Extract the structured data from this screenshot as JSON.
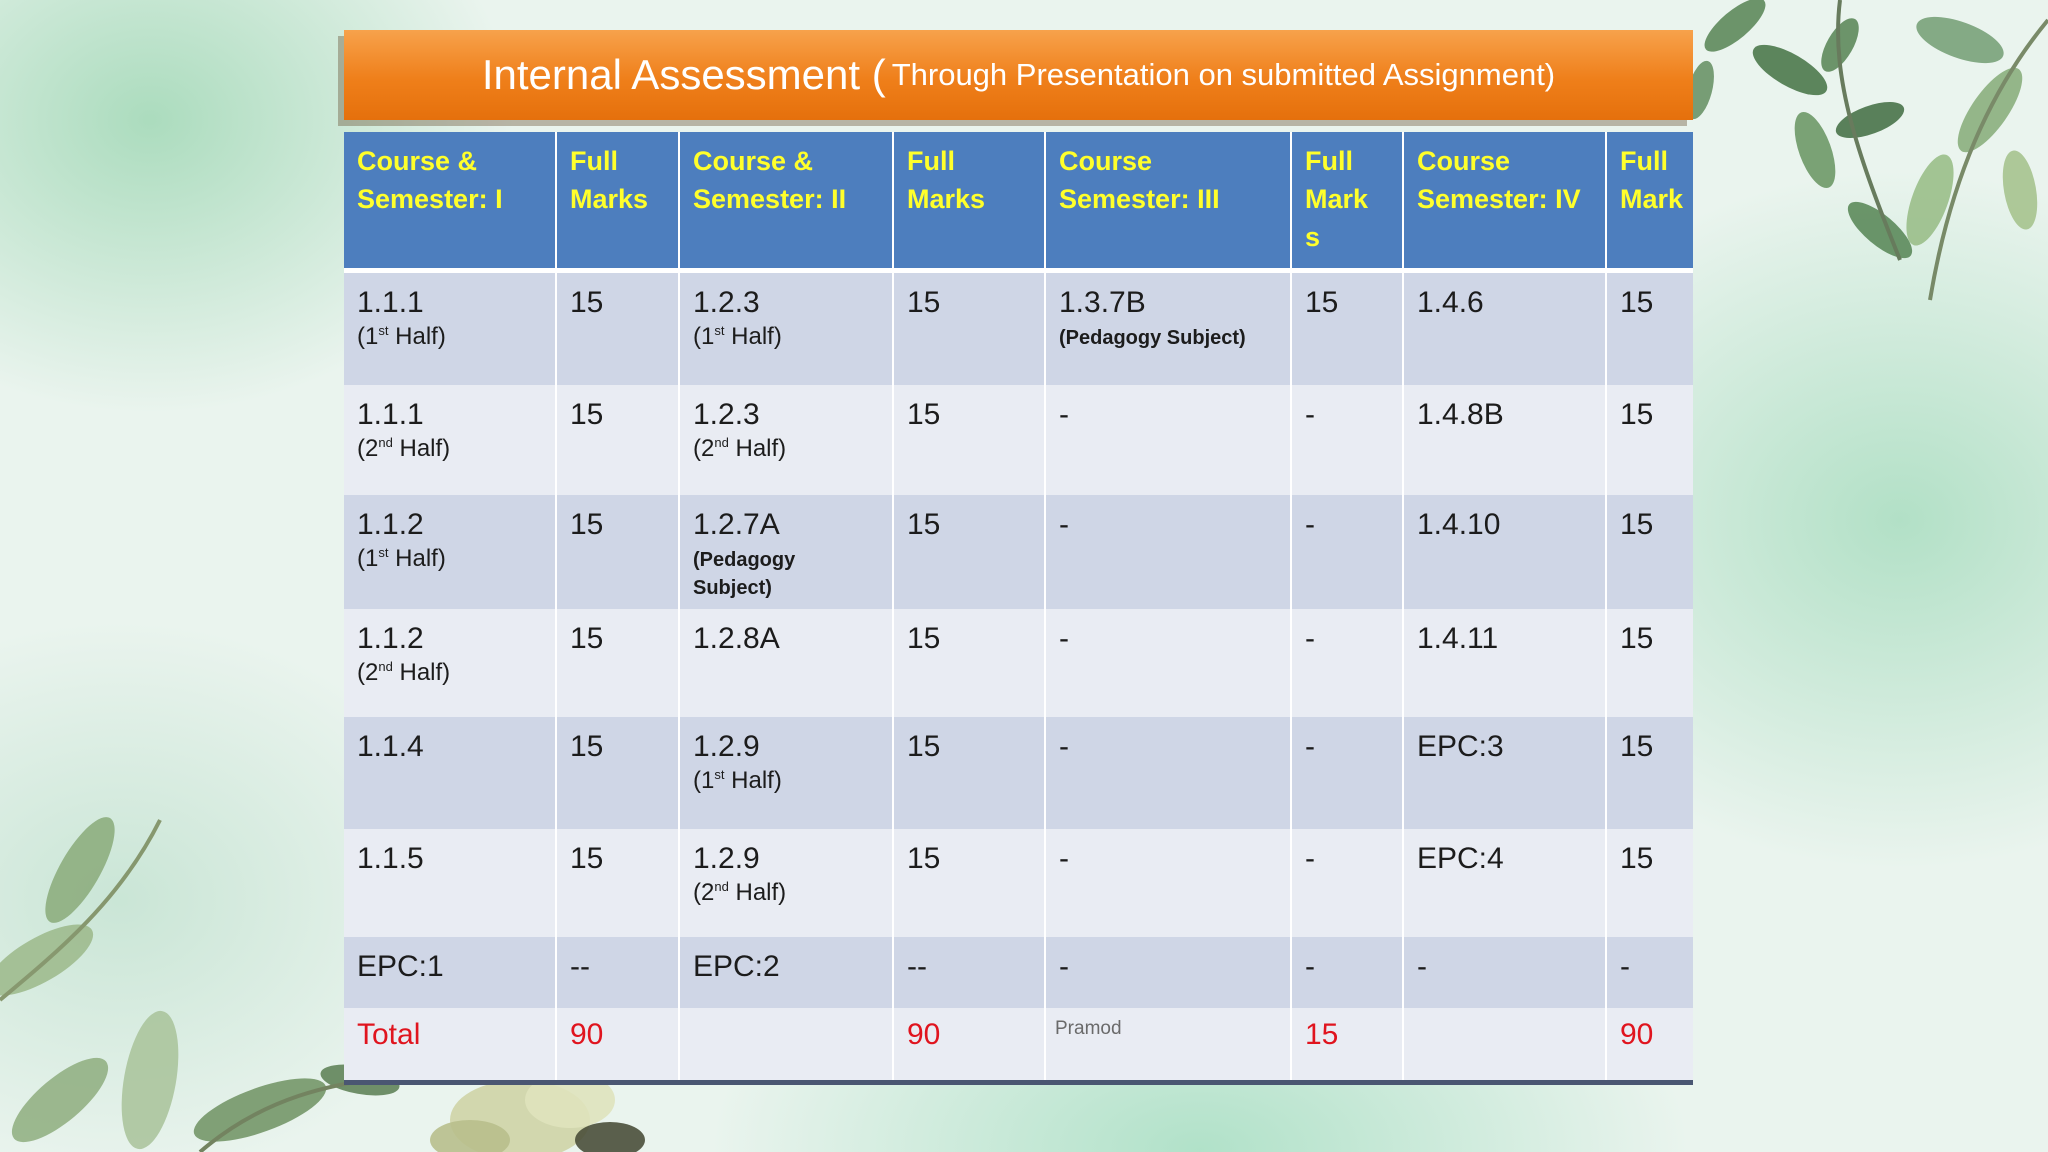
{
  "title": {
    "main": "Internal Assessment (",
    "sub": "Through Presentation on submitted  Assignment)"
  },
  "headers": [
    [
      "Course &",
      "Semester: I"
    ],
    [
      "Full",
      "Marks"
    ],
    [
      "Course &",
      "Semester: II"
    ],
    [
      "Full",
      "Marks"
    ],
    [
      "Course",
      "Semester: III"
    ],
    [
      "Full",
      "Mark",
      "s"
    ],
    [
      "Course",
      "Semester: IV"
    ],
    [
      "Full",
      "Mark"
    ]
  ],
  "rows": [
    {
      "c1": "1.1.1",
      "c1_sub_pre": "(1",
      "c1_sup": "st",
      "c1_sub_post": " Half)",
      "c2": "15",
      "c3": "1.2.3",
      "c3_sub_pre": "(1",
      "c3_sup": "st",
      "c3_sub_post": " Half)",
      "c4": "15",
      "c5": "1.3.7B",
      "c5_note": "(Pedagogy Subject)",
      "c6": "15",
      "c7": "1.4.6",
      "c8": "15"
    },
    {
      "c1": "1.1.1",
      "c1_sub_pre": "(2",
      "c1_sup": "nd",
      "c1_sub_post": " Half)",
      "c2": "15",
      "c3": "1.2.3",
      "c3_sub_pre": "(2",
      "c3_sup": "nd",
      "c3_sub_post": " Half)",
      "c4": "15",
      "c5": "-",
      "c6": "-",
      "c7": "1.4.8B",
      "c8": "15"
    },
    {
      "c1": "1.1.2",
      "c1_sub_pre": "(1",
      "c1_sup": "st",
      "c1_sub_post": " Half)",
      "c2": "15",
      "c3": "1.2.7A",
      "c3_note": "(Pedagogy Subject)",
      "c4": "15",
      "c5": "-",
      "c6": "-",
      "c7": "1.4.10",
      "c8": "15"
    },
    {
      "c1": "1.1.2",
      "c1_sub_pre": "(2",
      "c1_sup": "nd",
      "c1_sub_post": " Half)",
      "c2": "15",
      "c3": "1.2.8A",
      "c4": "15",
      "c5": "-",
      "c6": "-",
      "c7": "1.4.11",
      "c8": "15"
    },
    {
      "c1": "1.1.4",
      "c2": "15",
      "c3": "1.2.9",
      "c3_sub_pre": "(1",
      "c3_sup": "st",
      "c3_sub_post": " Half)",
      "c4": "15",
      "c5": "-",
      "c6": "-",
      "c7": "EPC:3",
      "c8": "15"
    },
    {
      "c1": "1.1.5",
      "c2": "15",
      "c3": "1.2.9",
      "c3_sub_pre": "(2",
      "c3_sup": "nd",
      "c3_sub_post": " Half)",
      "c4": "15",
      "c5": "-",
      "c6": "-",
      "c7": "EPC:4",
      "c8": "15"
    },
    {
      "c1": "EPC:1",
      "c2": "--",
      "c3": "EPC:2",
      "c4": "--",
      "c5": "-",
      "c6": "-",
      "c7": "-",
      "c8": "-"
    }
  ],
  "total_row": {
    "label": "Total",
    "sem1": "90",
    "sem2": "90",
    "watermark": "Pramod",
    "sem3": "15",
    "sem4": "90"
  },
  "colors": {
    "title_orange": "#ef7f1a",
    "header_blue": "#4d7ebe",
    "header_text": "#ffff2b",
    "row_dark": "#cfd6e6",
    "row_light": "#e9ecf3",
    "total_red": "#e0141e"
  }
}
